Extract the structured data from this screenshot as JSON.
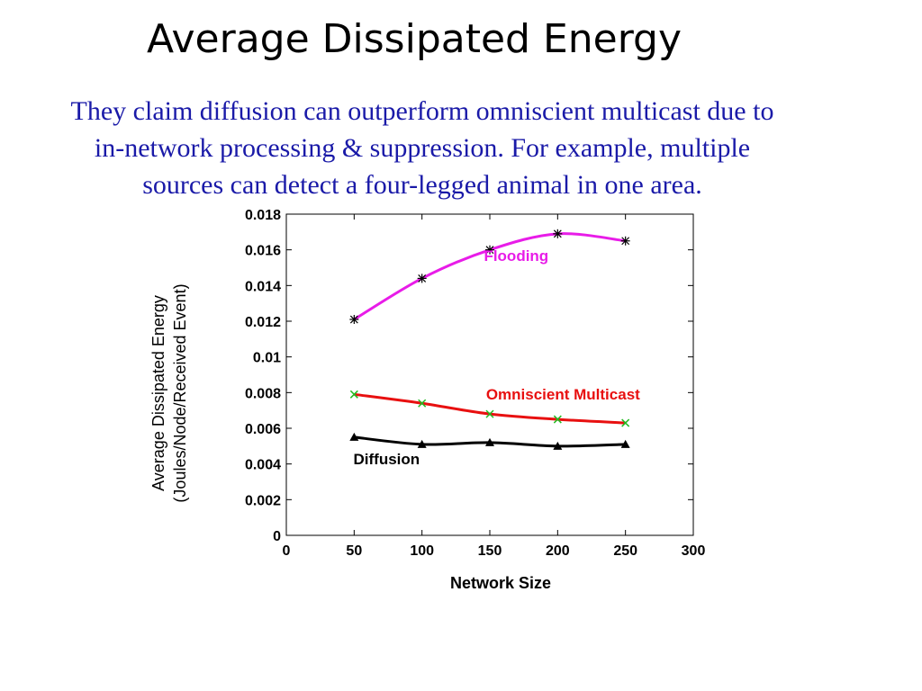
{
  "slide": {
    "title": "Average Dissipated Energy",
    "caption_lines": [
      "They claim diffusion can outperform omniscient multicast due to",
      "in-network processing & suppression. For example, multiple",
      "sources can detect a four-legged animal in one area."
    ]
  },
  "chart_data": {
    "type": "line",
    "title": "",
    "xlabel": "Network Size",
    "ylabel_lines": [
      "Average Dissipated Energy",
      "(Joules/Node/Received Event)"
    ],
    "xlim": [
      0,
      300
    ],
    "ylim": [
      0,
      0.018
    ],
    "x_ticks": [
      "0",
      "50",
      "100",
      "150",
      "200",
      "250",
      "300"
    ],
    "y_ticks": [
      "0",
      "0.002",
      "0.004",
      "0.006",
      "0.008",
      "0.01",
      "0.012",
      "0.014",
      "0.016",
      "0.018"
    ],
    "x": [
      50,
      100,
      150,
      200,
      250
    ],
    "series": [
      {
        "name": "Flooding",
        "values": [
          0.0121,
          0.0144,
          0.016,
          0.0169,
          0.0165
        ],
        "line_color": "#e81ce8",
        "marker": "asterisk",
        "marker_color": "#000000"
      },
      {
        "name": "Omniscient Multicast",
        "values": [
          0.0079,
          0.0074,
          0.0068,
          0.0065,
          0.0063
        ],
        "line_color": "#e81010",
        "marker": "x",
        "marker_color": "#22bb22"
      },
      {
        "name": "Diffusion",
        "values": [
          0.0055,
          0.0051,
          0.0052,
          0.005,
          0.0051
        ],
        "line_color": "#000000",
        "marker": "triangle",
        "marker_color": "#000000"
      }
    ],
    "grid": false,
    "legend": "inline labels"
  }
}
